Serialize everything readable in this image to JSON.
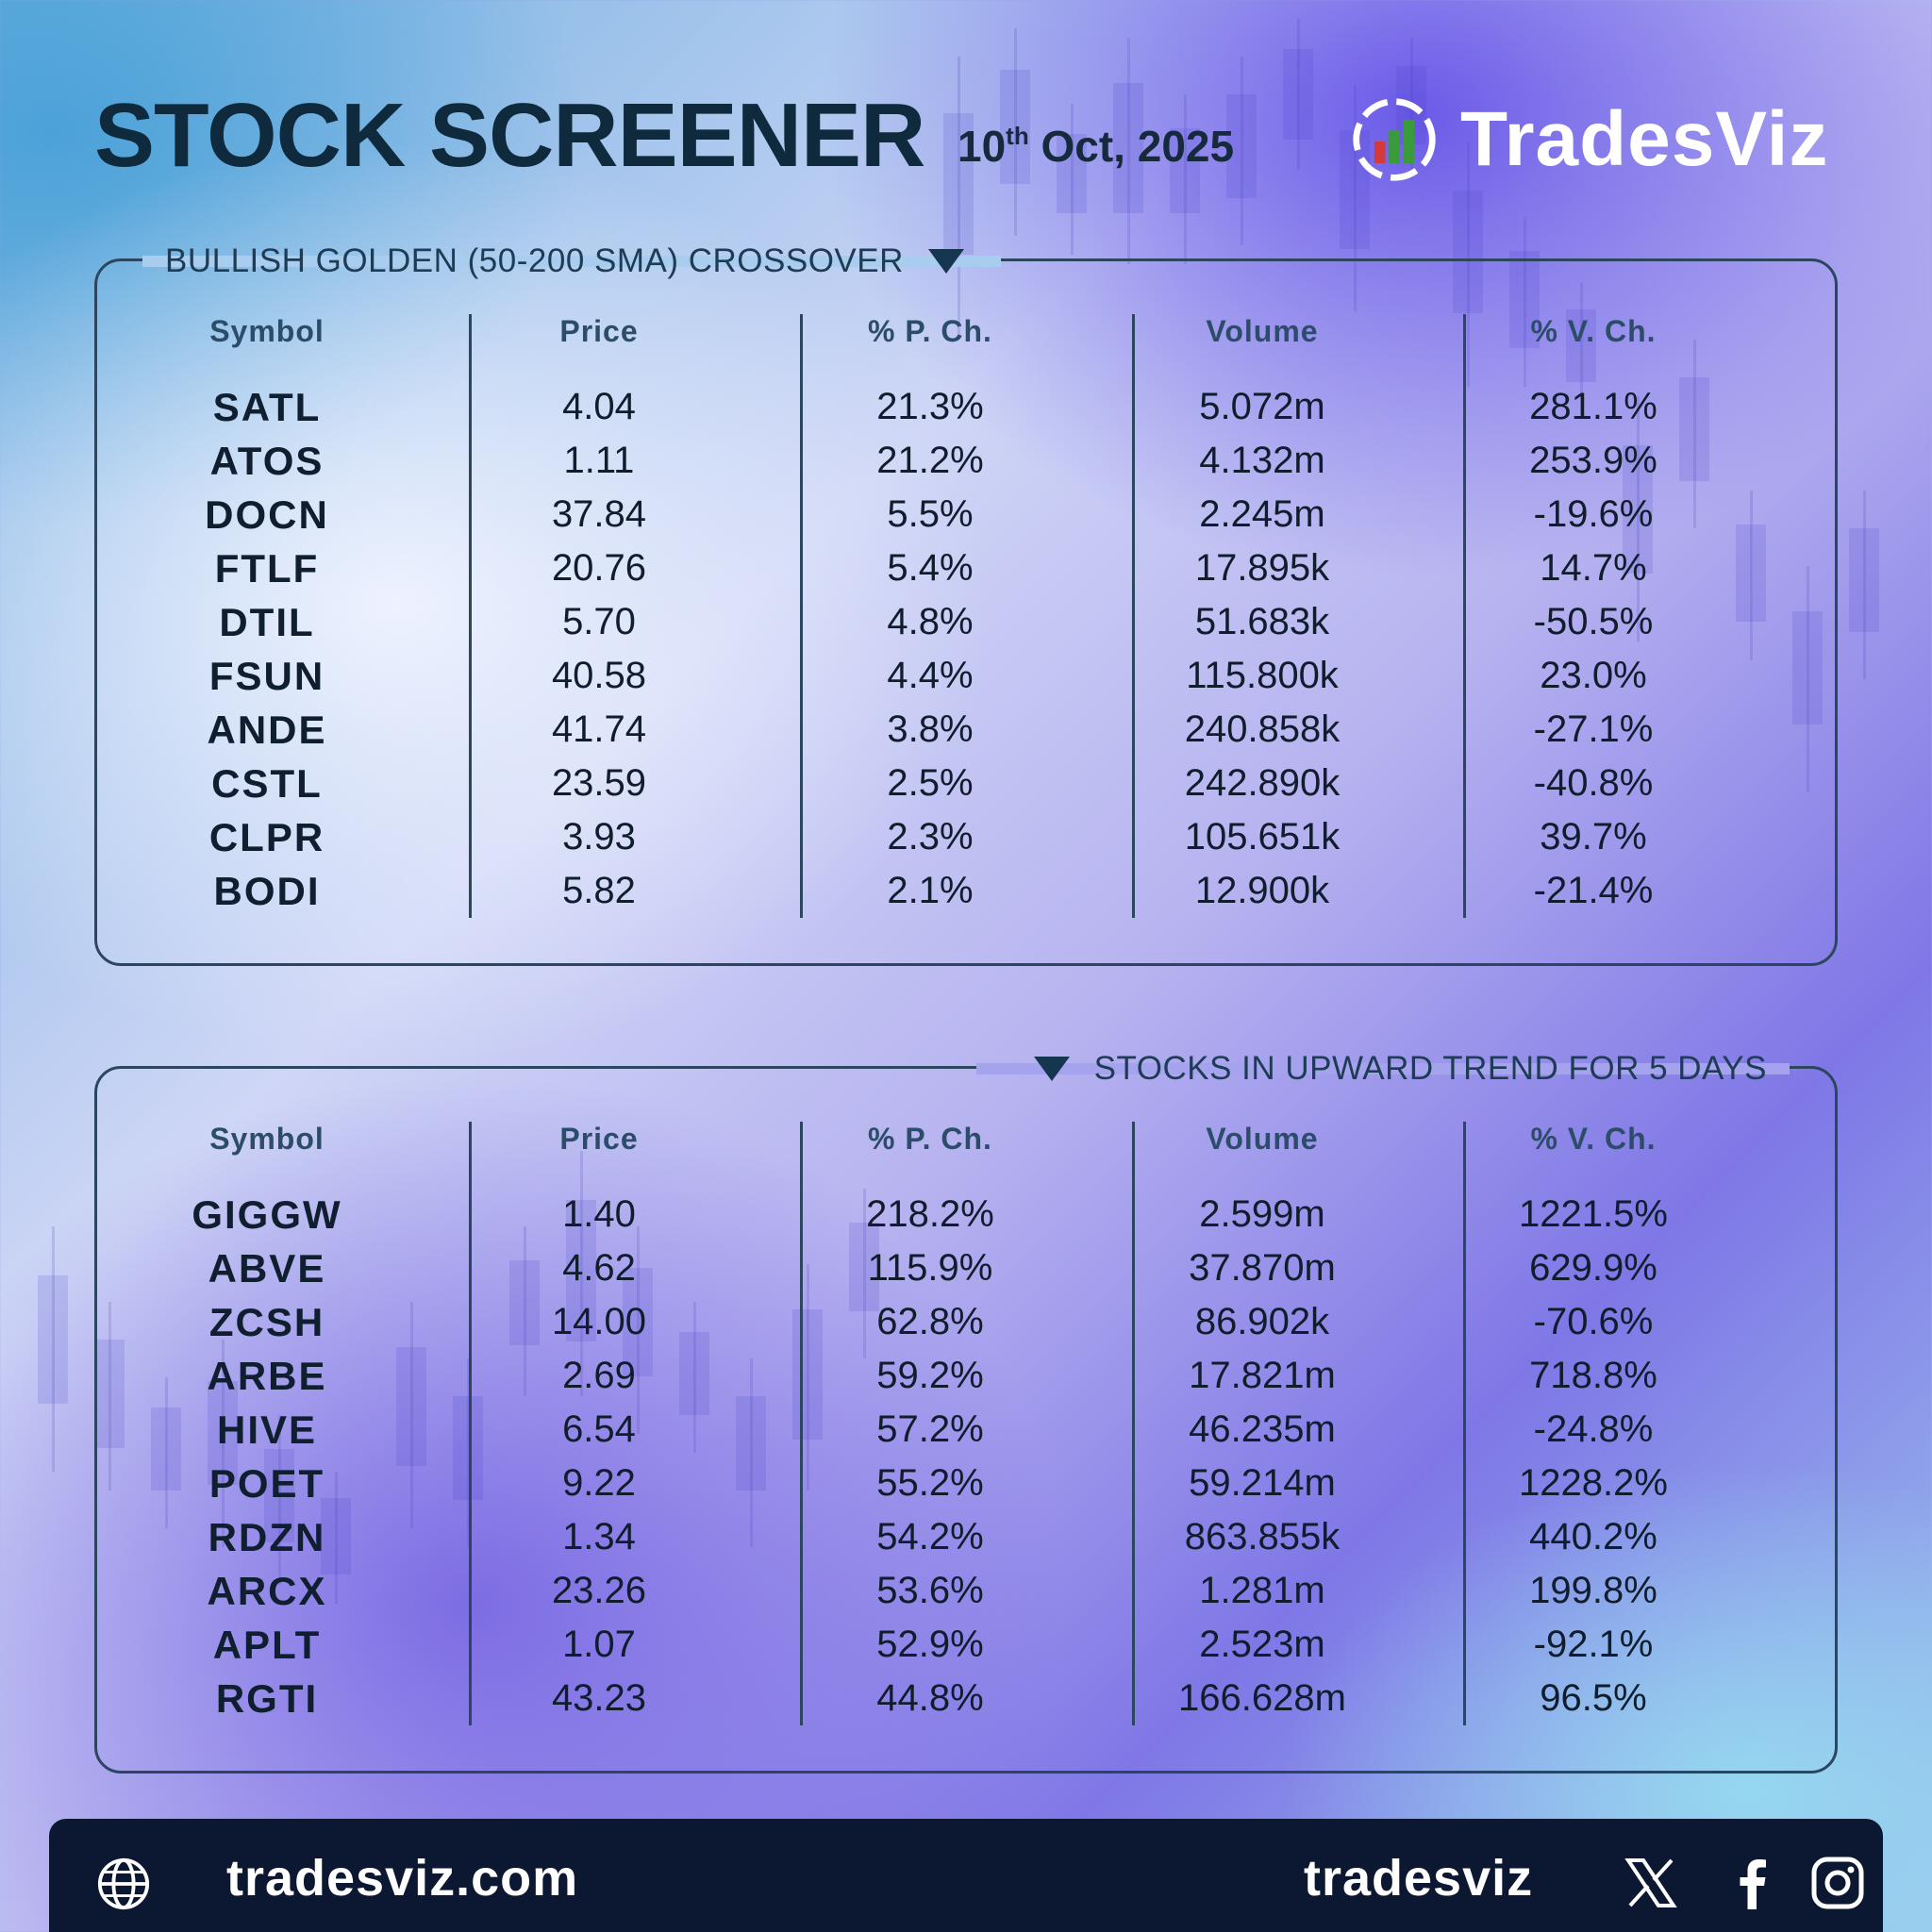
{
  "header": {
    "title": "STOCK SCREENER",
    "date_day": "10",
    "date_suffix": "th",
    "date_rest": " Oct, 2025",
    "brand_name": "TradesViz",
    "brand_logo_icon": "tradesviz-logo-icon"
  },
  "columns": [
    "Symbol",
    "Price",
    "% P. Ch.",
    "Volume",
    "% V. Ch."
  ],
  "tables": [
    {
      "title": "BULLISH GOLDEN (50-200 SMA) CROSSOVER",
      "rows": [
        {
          "symbol": "SATL",
          "price": "4.04",
          "pch": "21.3%",
          "volume": "5.072m",
          "vch": "281.1%"
        },
        {
          "symbol": "ATOS",
          "price": "1.11",
          "pch": "21.2%",
          "volume": "4.132m",
          "vch": "253.9%"
        },
        {
          "symbol": "DOCN",
          "price": "37.84",
          "pch": "5.5%",
          "volume": "2.245m",
          "vch": "-19.6%"
        },
        {
          "symbol": "FTLF",
          "price": "20.76",
          "pch": "5.4%",
          "volume": "17.895k",
          "vch": "14.7%"
        },
        {
          "symbol": "DTIL",
          "price": "5.70",
          "pch": "4.8%",
          "volume": "51.683k",
          "vch": "-50.5%"
        },
        {
          "symbol": "FSUN",
          "price": "40.58",
          "pch": "4.4%",
          "volume": "115.800k",
          "vch": "23.0%"
        },
        {
          "symbol": "ANDE",
          "price": "41.74",
          "pch": "3.8%",
          "volume": "240.858k",
          "vch": "-27.1%"
        },
        {
          "symbol": "CSTL",
          "price": "23.59",
          "pch": "2.5%",
          "volume": "242.890k",
          "vch": "-40.8%"
        },
        {
          "symbol": "CLPR",
          "price": "3.93",
          "pch": "2.3%",
          "volume": "105.651k",
          "vch": "39.7%"
        },
        {
          "symbol": "BODI",
          "price": "5.82",
          "pch": "2.1%",
          "volume": "12.900k",
          "vch": "-21.4%"
        }
      ]
    },
    {
      "title": "STOCKS IN UPWARD TREND FOR 5 DAYS",
      "rows": [
        {
          "symbol": "GIGGW",
          "price": "1.40",
          "pch": "218.2%",
          "volume": "2.599m",
          "vch": "1221.5%"
        },
        {
          "symbol": "ABVE",
          "price": "4.62",
          "pch": "115.9%",
          "volume": "37.870m",
          "vch": "629.9%"
        },
        {
          "symbol": "ZCSH",
          "price": "14.00",
          "pch": "62.8%",
          "volume": "86.902k",
          "vch": "-70.6%"
        },
        {
          "symbol": "ARBE",
          "price": "2.69",
          "pch": "59.2%",
          "volume": "17.821m",
          "vch": "718.8%"
        },
        {
          "symbol": "HIVE",
          "price": "6.54",
          "pch": "57.2%",
          "volume": "46.235m",
          "vch": "-24.8%"
        },
        {
          "symbol": "POET",
          "price": "9.22",
          "pch": "55.2%",
          "volume": "59.214m",
          "vch": "1228.2%"
        },
        {
          "symbol": "RDZN",
          "price": "1.34",
          "pch": "54.2%",
          "volume": "863.855k",
          "vch": "440.2%"
        },
        {
          "symbol": "ARCX",
          "price": "23.26",
          "pch": "53.6%",
          "volume": "1.281m",
          "vch": "199.8%"
        },
        {
          "symbol": "APLT",
          "price": "1.07",
          "pch": "52.9%",
          "volume": "2.523m",
          "vch": "-92.1%"
        },
        {
          "symbol": "RGTI",
          "price": "43.23",
          "pch": "44.8%",
          "volume": "166.628m",
          "vch": "96.5%"
        }
      ]
    }
  ],
  "footer": {
    "website": "tradesviz.com",
    "handle": "tradesviz",
    "icons": [
      "globe-icon",
      "x-icon",
      "facebook-icon",
      "instagram-icon"
    ]
  },
  "colors": {
    "dark_text": "#0f2a3d",
    "panel_border": "#2d4660",
    "footer_bg": "#0c1832",
    "brand_green": "#3a9b3a",
    "brand_red": "#d43a3a"
  }
}
